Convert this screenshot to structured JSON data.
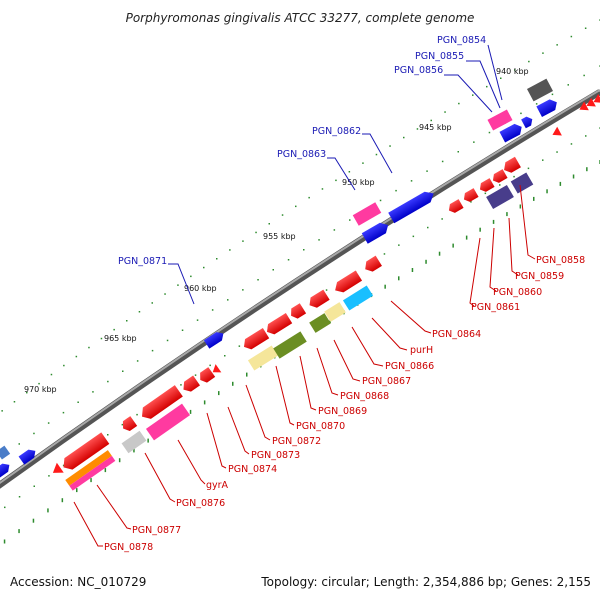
{
  "title": "Porphyromonas gingivalis ATCC 33277, complete genome",
  "footer": {
    "accession": "Accession: NC_010729",
    "summary": "Topology: circular; Length: 2,354,886 bp; Genes: 2,155"
  },
  "ticks": [
    "940 kbp",
    "945 kbp",
    "950 kbp",
    "955 kbp",
    "960 kbp",
    "965 kbp",
    "970 kbp"
  ],
  "colors": {
    "forward_label": "#1a1ab4",
    "reverse_label": "#cc0000",
    "backbone": "#6e6e6e",
    "dots": "#2e8b2e"
  },
  "forward_labels": [
    "PGN_0854",
    "PGN_0855",
    "PGN_0856",
    "PGN_0862",
    "PGN_0863",
    "PGN_0871"
  ],
  "reverse_labels": [
    "PGN_0858",
    "PGN_0859",
    "PGN_0860",
    "PGN_0861",
    "PGN_0864",
    "purH",
    "PGN_0866",
    "PGN_0867",
    "PGN_0868",
    "PGN_0869",
    "PGN_0870",
    "PGN_0872",
    "PGN_0873",
    "PGN_0874",
    "gyrA",
    "PGN_0876",
    "PGN_0877",
    "PGN_0878"
  ]
}
